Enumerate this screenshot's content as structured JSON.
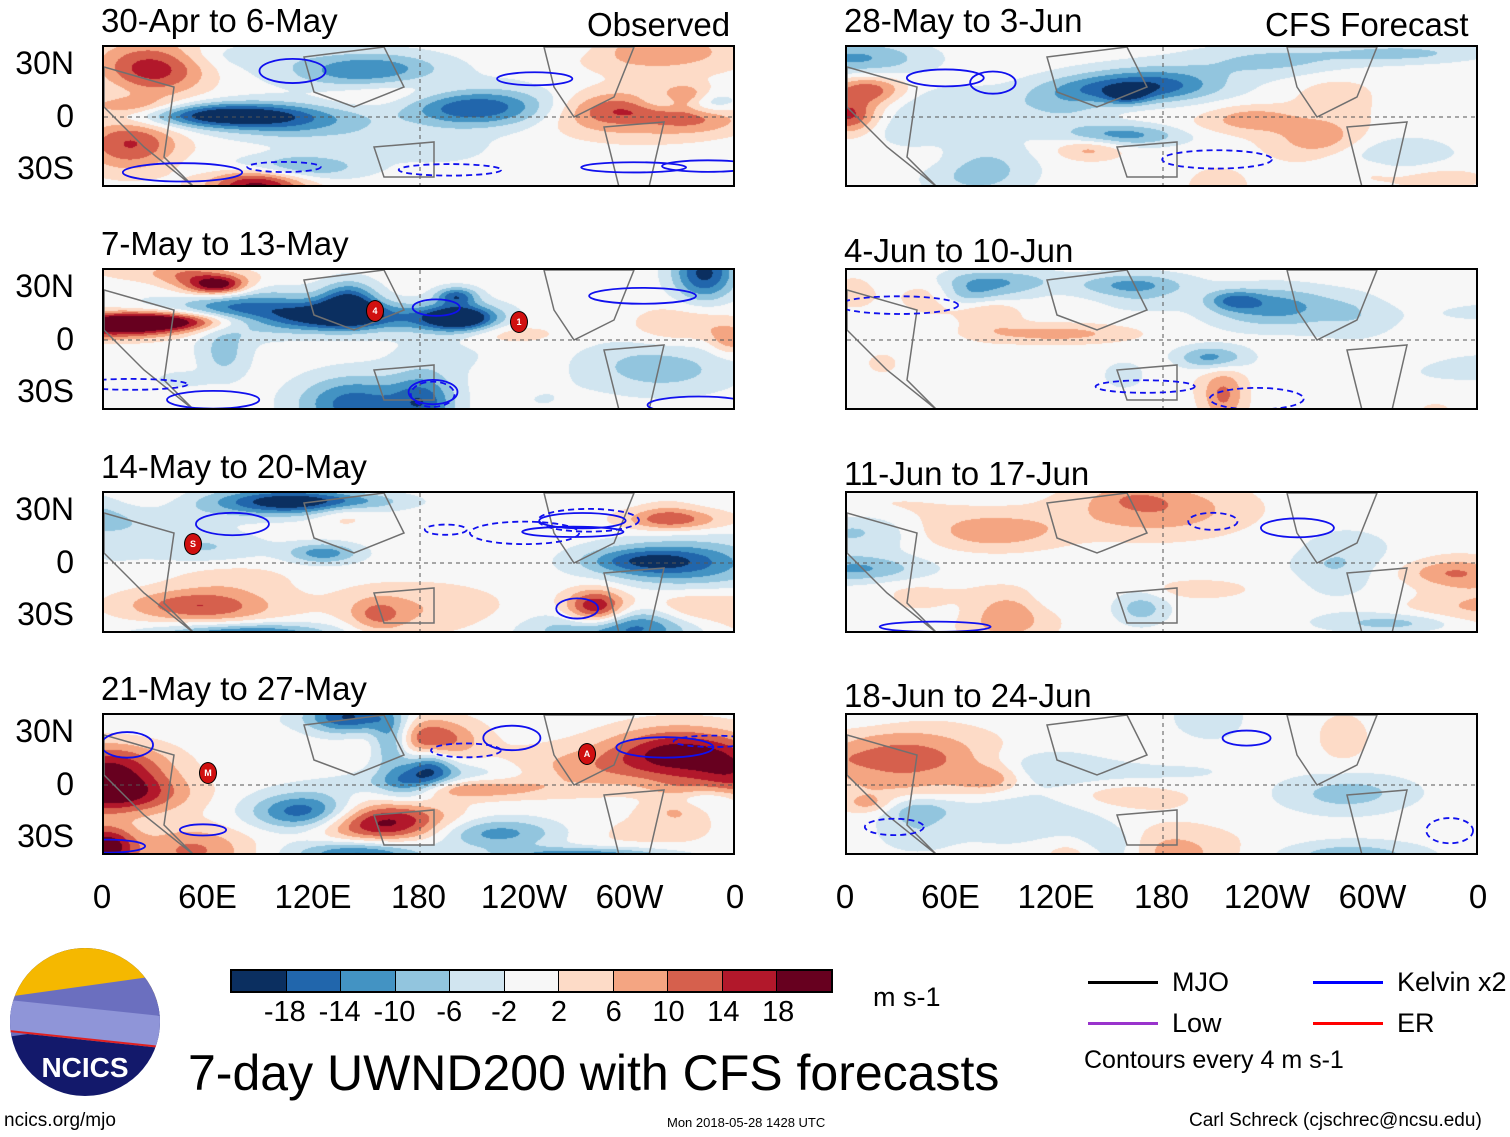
{
  "chart_data": {
    "type": "heatmap",
    "title": "7-day UWND200 with CFS forecasts",
    "units": "m s-1",
    "colorbar": {
      "ticks": [
        "-18",
        "-14",
        "-10",
        "-6",
        "-2",
        "2",
        "6",
        "10",
        "14",
        "18"
      ],
      "colors": [
        "#0b2f60",
        "#2166ac",
        "#4393c3",
        "#92c5de",
        "#d1e5f0",
        "#f7f7f7",
        "#fddbc7",
        "#f4a582",
        "#d6604d",
        "#b2182b",
        "#67001f"
      ]
    },
    "xticks": [
      "0",
      "60E",
      "120E",
      "180",
      "120W",
      "60W",
      "0"
    ],
    "yticks": [
      "30N",
      "0",
      "30S"
    ],
    "columns": [
      {
        "label": "Observed",
        "panels": [
          {
            "title": "30-Apr to 6-May",
            "storms": []
          },
          {
            "title": "7-May to 13-May",
            "storms": [
              "4",
              "1"
            ]
          },
          {
            "title": "14-May to 20-May",
            "storms": [
              "S"
            ]
          },
          {
            "title": "21-May to 27-May",
            "storms": [
              "M",
              "A"
            ]
          }
        ]
      },
      {
        "label": "CFS Forecast",
        "panels": [
          {
            "title": "28-May to 3-Jun"
          },
          {
            "title": "4-Jun to 10-Jun"
          },
          {
            "title": "11-Jun to 17-Jun"
          },
          {
            "title": "18-Jun to 24-Jun"
          }
        ]
      }
    ],
    "legend": {
      "items": [
        {
          "label": "MJO",
          "color": "#000000"
        },
        {
          "label": "Kelvin x2",
          "color": "#0000ff"
        },
        {
          "label": "Low",
          "color": "#9933cc"
        },
        {
          "label": "ER",
          "color": "#ff0000"
        }
      ],
      "note": "Contours every 4 m s-1"
    }
  },
  "footer": {
    "left": "ncics.org/mjo",
    "center": "Mon 2018-05-28 1428 UTC",
    "right": "Carl Schreck (cjschrec@ncsu.edu)",
    "logo_text": "NCICS"
  }
}
